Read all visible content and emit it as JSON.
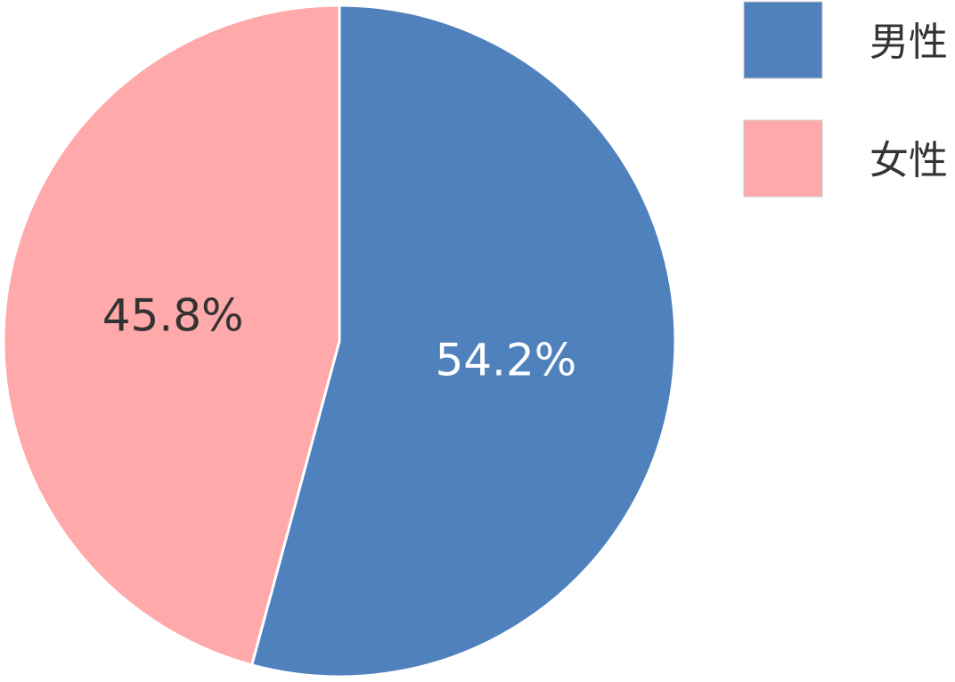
{
  "chart_data": {
    "type": "pie",
    "categories": [
      "男性",
      "女性"
    ],
    "values": [
      54.2,
      45.8
    ],
    "value_labels": [
      "54.2%",
      "45.8%"
    ],
    "colors": [
      "#4f81bd",
      "#ffa9aa"
    ],
    "legend": "top-right"
  }
}
